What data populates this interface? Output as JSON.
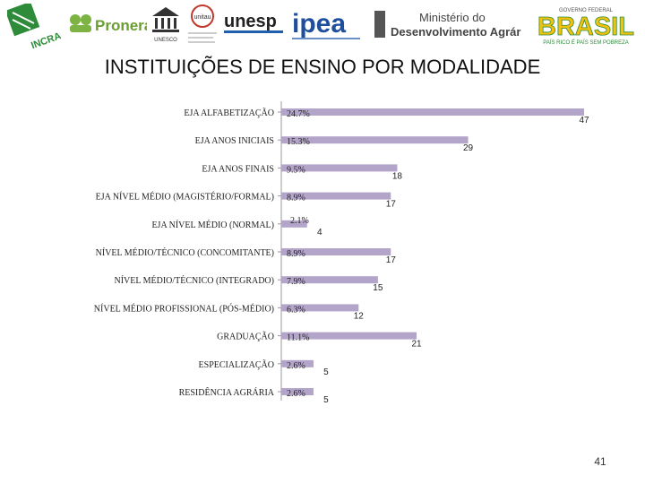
{
  "header": {
    "logos": {
      "incra": "INCRA",
      "pronera": "Pronera",
      "unesco": "UNESCO",
      "unitau": "unitau",
      "unesp": "unesp",
      "ipea": "ipea",
      "ministerio_line1": "Ministério do",
      "ministerio_line2": "Desenvolvimento Agrário",
      "brasil_top": "GOVERNO FEDERAL",
      "brasil": "BRASIL",
      "brasil_bottom": "PAÍS RICO É PAÍS SEM POBREZA"
    }
  },
  "page_number": "41",
  "colors": {
    "bar": "#b3a5c9",
    "axis": "#999999"
  },
  "chart_data": {
    "type": "bar",
    "orientation": "horizontal",
    "title": "INSTITUIÇÕES DE ENSINO POR MODALIDADE",
    "categories": [
      "EJA ALFABETIZAÇÃO",
      "EJA ANOS INICIAIS",
      "EJA ANOS FINAIS",
      "EJA NÍVEL MÉDIO (MAGISTÉRIO/FORMAL)",
      "EJA NÍVEL MÉDIO (NORMAL)",
      "NÍVEL MÉDIO/TÉCNICO (CONCOMITANTE)",
      "NÍVEL MÉDIO/TÉCNICO (INTEGRADO)",
      "NÍVEL MÉDIO PROFISSIONAL (PÓS-MÉDIO)",
      "GRADUAÇÃO",
      "ESPECIALIZAÇÃO",
      "RESIDÊNCIA AGRÁRIA"
    ],
    "values": [
      47,
      29,
      18,
      17,
      4,
      17,
      15,
      12,
      21,
      5,
      5
    ],
    "percent_labels": [
      "24.7%",
      "15.3%",
      "9.5%",
      "8.9%",
      "2.1%",
      "8.9%",
      "7.9%",
      "6.3%",
      "11.1%",
      "2.6%",
      "2.6%"
    ],
    "xlim": [
      0,
      47
    ],
    "grid": false,
    "legend": "none"
  }
}
